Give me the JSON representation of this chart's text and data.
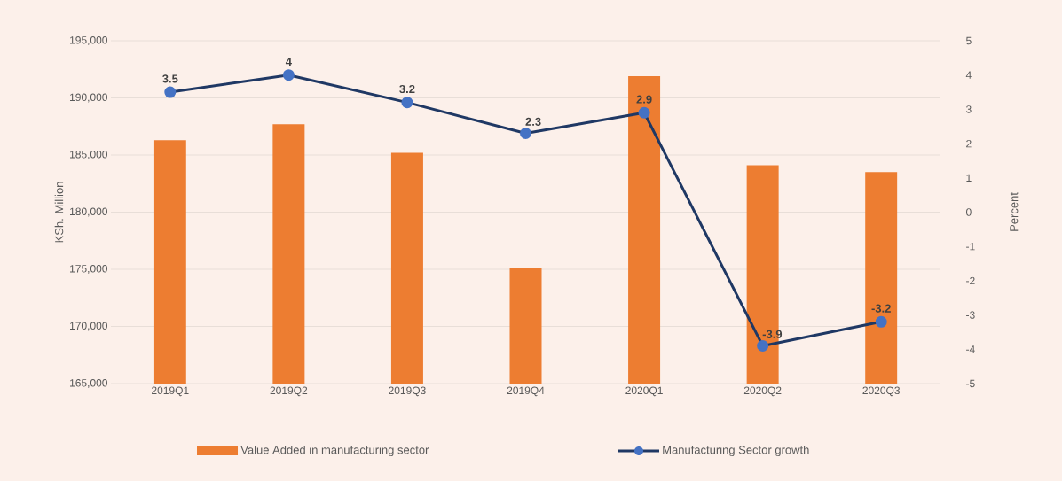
{
  "chart_data": {
    "type": "bar",
    "ylabel": "KSh. Million",
    "y2label": "Percent",
    "categories": [
      "2019Q1",
      "2019Q2",
      "2019Q3",
      "2019Q4",
      "2020Q1",
      "2020Q2",
      "2020Q3"
    ],
    "series": [
      {
        "name": "Value Added in manufacturing sector",
        "color": "#ed7d31",
        "values": [
          186300,
          187700,
          185200,
          175100,
          191900,
          184100,
          183500
        ]
      },
      {
        "name": "Manufacturing Sector growth",
        "type": "line",
        "axis": "y2",
        "color": "#1f3864",
        "marker": "circle",
        "line_style": "solid",
        "values": [
          3.5,
          4,
          3.2,
          2.3,
          2.9,
          -3.9,
          -3.2
        ],
        "value_labels": [
          "3.5",
          "4",
          "3.2",
          "2.3",
          "2.9",
          "-3.9",
          "-3.2"
        ]
      }
    ],
    "ylim": [
      165000,
      195000
    ],
    "yticks": [
      {
        "value": 165000,
        "label": "165,000"
      },
      {
        "value": 170000,
        "label": "170,000"
      },
      {
        "value": 175000,
        "label": "175,000"
      },
      {
        "value": 180000,
        "label": "180,000"
      },
      {
        "value": 185000,
        "label": "185,000"
      },
      {
        "value": 190000,
        "label": "190,000"
      },
      {
        "value": 195000,
        "label": "195,000"
      }
    ],
    "y2lim": [
      -5,
      5
    ],
    "y2ticks": [
      -5,
      -4,
      -3,
      -2,
      -1,
      0,
      1,
      2,
      3,
      4,
      5
    ],
    "grid": "y",
    "legend": "bottom"
  }
}
